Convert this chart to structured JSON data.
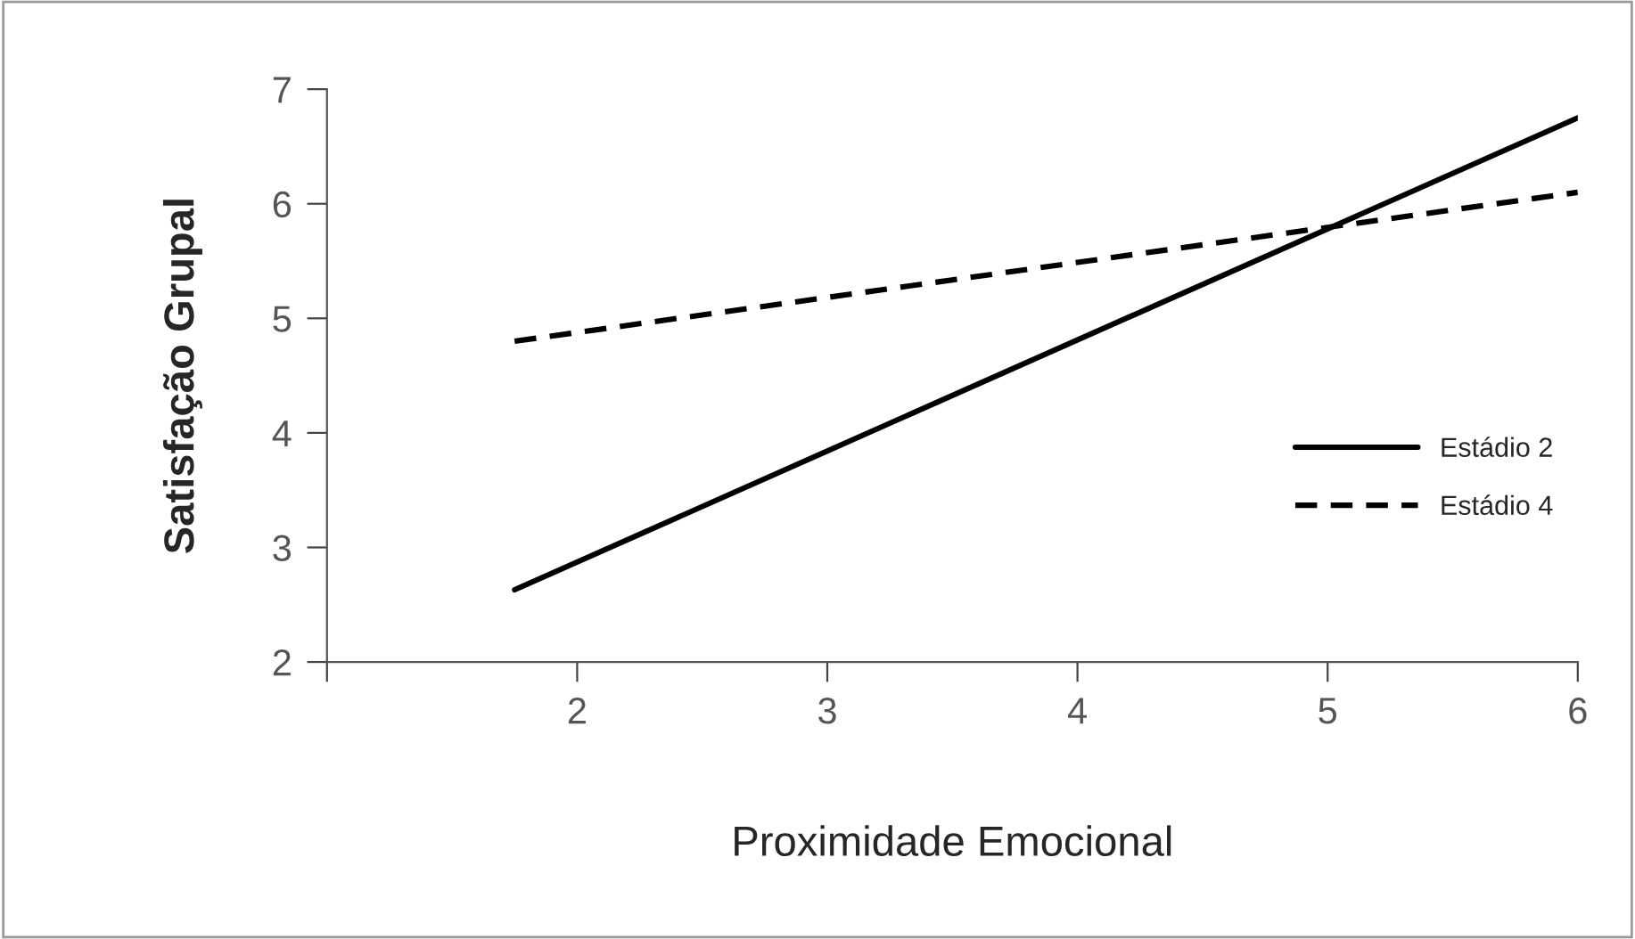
{
  "chart_data": {
    "type": "line",
    "xlabel": "Proximidade Emocional",
    "ylabel": "Satisfação Grupal",
    "x": [
      1.75,
      6
    ],
    "series": [
      {
        "name": "Estádio 2",
        "color": "#000000",
        "values": [
          2.63,
          6.75
        ],
        "line_style": "solid"
      },
      {
        "name": "Estádio 4",
        "color": "#000000",
        "values": [
          4.8,
          6.1
        ],
        "line_style": "dashed"
      }
    ],
    "xlim": [
      1,
      6
    ],
    "xticks": [
      {
        "value": 1,
        "label": null
      },
      2,
      3,
      4,
      5,
      6
    ],
    "ylim": [
      2,
      7
    ],
    "yticks": [
      2,
      3,
      4,
      5,
      6,
      7
    ],
    "grid": false,
    "legend": "right",
    "marker": "none"
  }
}
